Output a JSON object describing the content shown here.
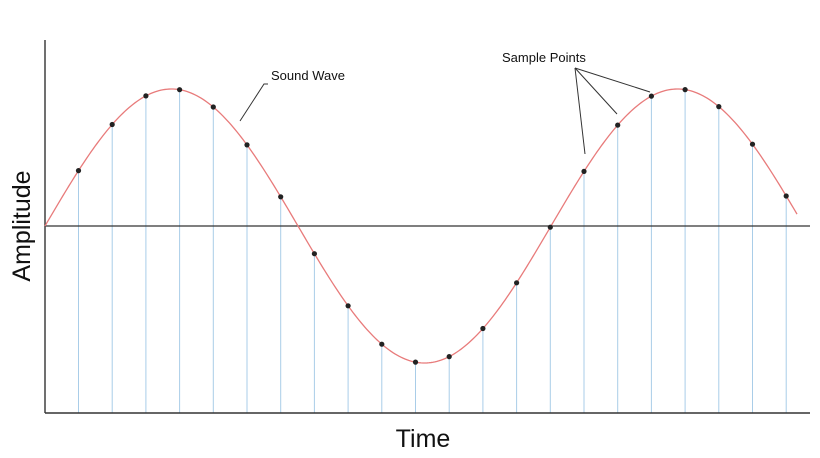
{
  "diagram": {
    "x_axis_label": "Time",
    "y_axis_label": "Amplitude",
    "wave_label": "Sound Wave",
    "samples_label": "Sample Points"
  },
  "colors": {
    "wave": "#e87b7b",
    "sample_line": "#a9cde8",
    "sample_point": "#222222",
    "axis": "#333333"
  }
}
